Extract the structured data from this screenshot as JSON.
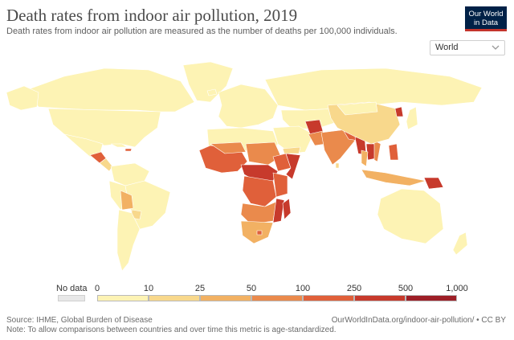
{
  "header": {
    "title": "Death rates from indoor air pollution, 2019",
    "subtitle": "Death rates from indoor air pollution are measured as the number of deaths per 100,000 individuals.",
    "logo_line1": "Our World",
    "logo_line2": "in Data"
  },
  "region_select": {
    "value": "World",
    "icon": "chevron-down-icon"
  },
  "legend": {
    "nodata_label": "No data",
    "ticks": [
      "0",
      "10",
      "25",
      "50",
      "100",
      "250",
      "500",
      "1,000"
    ],
    "colors": [
      "#fdf3b4",
      "#f8d88c",
      "#f2b163",
      "#ea8a4c",
      "#e0603a",
      "#c73a2c",
      "#9d1f27"
    ]
  },
  "footer": {
    "source": "Source: IHME, Global Burden of Disease",
    "note": "Note: To allow comparisons between countries and over time this metric is age-standardized.",
    "url": "OurWorldInData.org/indoor-air-pollution/ • CC BY"
  },
  "colors": {
    "very_low": "#fdf3b4",
    "low": "#f8d88c",
    "mid_low": "#f2b163",
    "mid": "#ea8a4c",
    "high": "#e0603a",
    "very_high": "#c73a2c",
    "extreme": "#9d1f27",
    "no_data": "#e8e8e8"
  }
}
